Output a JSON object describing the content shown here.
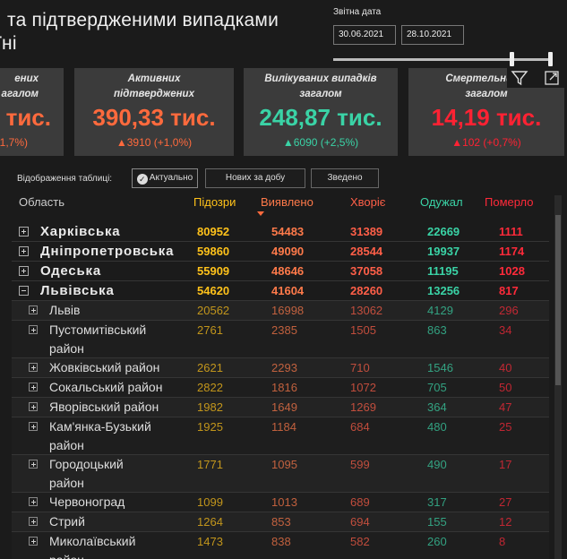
{
  "title": {
    "line1": "та підтвердженими випадками",
    "line2": "їні"
  },
  "date_filter": {
    "label": "Звітна дата",
    "from": "30.06.2021",
    "to": "28.10.2021"
  },
  "cards": [
    {
      "label1": "ених",
      "label2": "агалом",
      "value": "тис.",
      "change": "1,7%)",
      "color": "#ff6a3d"
    },
    {
      "label1": "Активних",
      "label2": "підтверджених",
      "value": "390,33 тис.",
      "change": "▲3910 (+1,0%)",
      "color": "#ff6a3d"
    },
    {
      "label1": "Вилікуваних випадків",
      "label2": "загалом",
      "value": "248,87 тис.",
      "change": "▲6090 (+2,5%)",
      "color": "#3ad3a6"
    },
    {
      "label1": "Смертельних в",
      "label2": "загалом",
      "value": "14,19 тис.",
      "change": "▲102 (+0,7%)",
      "color": "#ff2233"
    }
  ],
  "table": {
    "view_label": "Відображення таблиці:",
    "view_buttons": [
      "Актуально",
      "Нових за добу",
      "Зведено"
    ],
    "columns": [
      "Область",
      "Підозри",
      "Виявлено",
      "Хворіє",
      "Одужал",
      "Померло"
    ],
    "regions": [
      {
        "name": "Харківська",
        "vals": [
          "80952",
          "54483",
          "31389",
          "22669",
          "1111"
        ]
      },
      {
        "name": "Дніпропетровська",
        "vals": [
          "59860",
          "49090",
          "28544",
          "19937",
          "1174"
        ]
      },
      {
        "name": "Одеська",
        "vals": [
          "55909",
          "48646",
          "37058",
          "11195",
          "1028"
        ]
      },
      {
        "name": "Львівська",
        "vals": [
          "54620",
          "41604",
          "28260",
          "13256",
          "817"
        ]
      }
    ],
    "districts": [
      {
        "name": "Львів",
        "vals": [
          "20562",
          "16998",
          "13062",
          "4129",
          "296"
        ]
      },
      {
        "name": "Пустомитівський",
        "name2": "район",
        "vals": [
          "2761",
          "2385",
          "1505",
          "863",
          "34"
        ]
      },
      {
        "name": "Жовківський район",
        "vals": [
          "2621",
          "2293",
          "710",
          "1546",
          "40"
        ]
      },
      {
        "name": "Сокальський район",
        "vals": [
          "2822",
          "1816",
          "1072",
          "705",
          "50"
        ]
      },
      {
        "name": "Яворівський район",
        "vals": [
          "1982",
          "1649",
          "1269",
          "364",
          "47"
        ]
      },
      {
        "name": "Кам'янка-Бузький",
        "name2": "район",
        "vals": [
          "1925",
          "1184",
          "684",
          "480",
          "25"
        ]
      },
      {
        "name": "Городоцький",
        "name2": "район",
        "vals": [
          "1771",
          "1095",
          "599",
          "490",
          "17"
        ]
      },
      {
        "name": "Червоноград",
        "vals": [
          "1099",
          "1013",
          "689",
          "317",
          "27"
        ]
      },
      {
        "name": "Стрий",
        "vals": [
          "1264",
          "853",
          "694",
          "155",
          "12"
        ]
      },
      {
        "name": "Миколаївський",
        "name2": "район",
        "vals": [
          "1473",
          "838",
          "582",
          "260",
          "8"
        ]
      }
    ]
  },
  "icons": {
    "filter": "filter-icon",
    "focus": "focus-mode-icon"
  }
}
